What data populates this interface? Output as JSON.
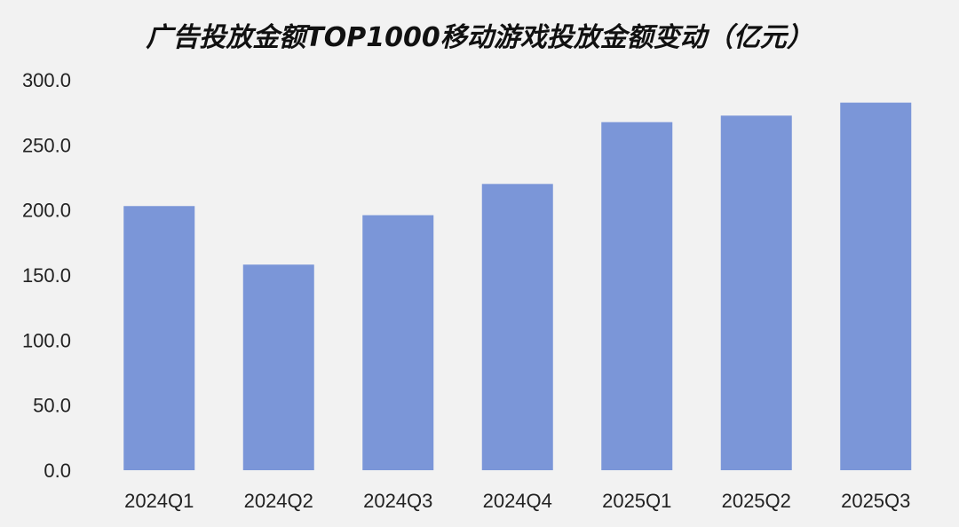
{
  "chart_data": {
    "type": "bar",
    "title": "广告投放金额TOP1000移动游戏投放金额变动（亿元）",
    "xlabel": "",
    "ylabel": "",
    "categories": [
      "2024Q1",
      "2024Q2",
      "2024Q3",
      "2024Q4",
      "2025Q1",
      "2025Q2",
      "2025Q3"
    ],
    "values": [
      203.0,
      158.0,
      196.0,
      220.0,
      267.5,
      272.5,
      282.5
    ],
    "ylim": [
      0,
      300
    ],
    "yticks": [
      "0.0",
      "50.0",
      "100.0",
      "150.0",
      "200.0",
      "250.0",
      "300.0"
    ],
    "bar_color": "#7b96d8",
    "grid": false,
    "legend": "none"
  }
}
